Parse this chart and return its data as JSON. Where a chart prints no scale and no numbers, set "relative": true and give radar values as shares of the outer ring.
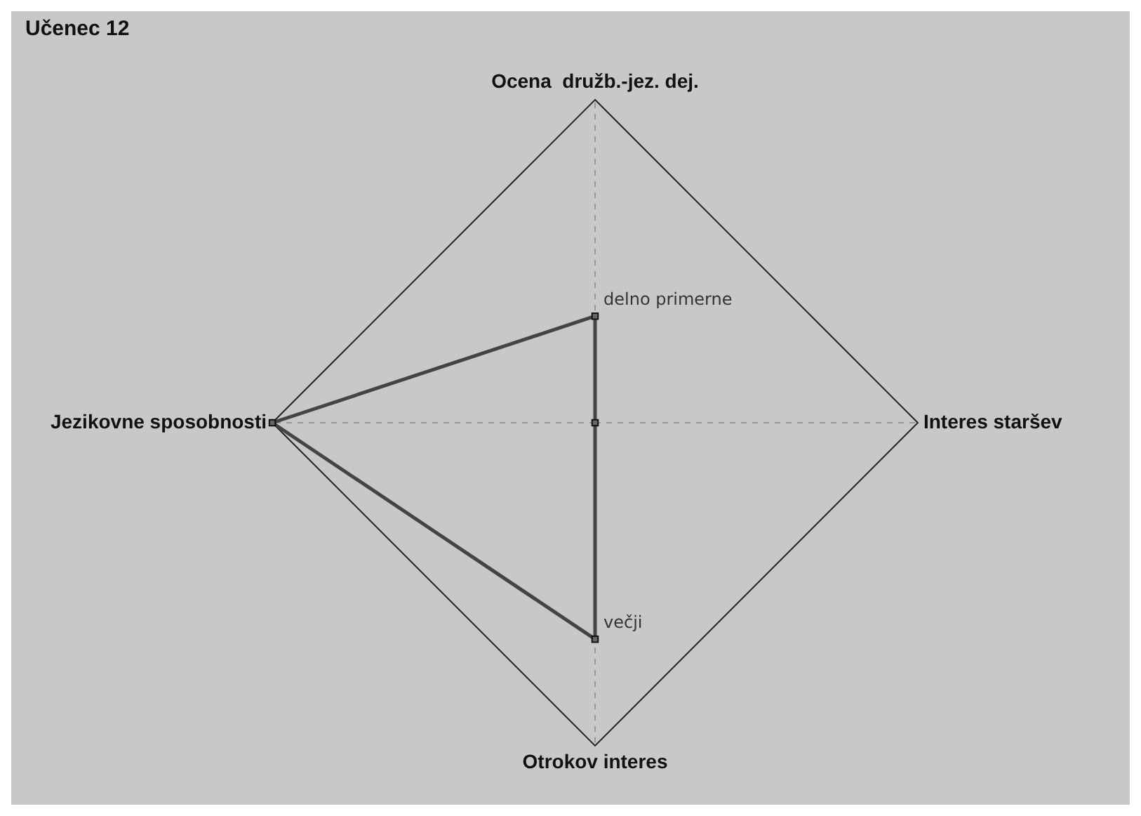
{
  "chart_data": {
    "type": "radar",
    "title": "Učenec 12",
    "relative": true,
    "categories": [
      "Ocena  družb.-jez. dej.",
      "Interes staršev",
      "Otrokov interes",
      "Jezikovne sposobnosti"
    ],
    "series": [
      {
        "color": "#444444",
        "values": [
          0.33,
          0,
          0.67,
          1
        ]
      }
    ],
    "annotations": [
      {
        "text": "delno primerne",
        "x": "Ocena  družb.-jez. dej."
      },
      {
        "text": "večji",
        "x": "Otrokov interes"
      }
    ],
    "marker": "square",
    "line_style": "solid",
    "legend": false,
    "grid": true
  }
}
